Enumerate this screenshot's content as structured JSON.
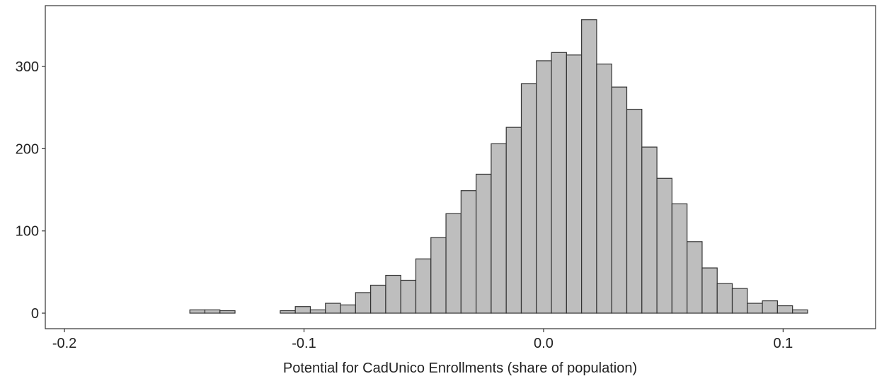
{
  "chart_data": {
    "type": "histogram",
    "x_label": "Potential for CadUnico Enrollments (share of population)",
    "bins": [
      -0.1917,
      -0.18541,
      -0.17912,
      -0.17283,
      -0.16654,
      -0.16025,
      -0.15396,
      -0.14767,
      -0.14138,
      -0.13509,
      -0.1288,
      -0.12251,
      -0.11622,
      -0.10993,
      -0.10364,
      -0.09735,
      -0.09106,
      -0.08477,
      -0.07848,
      -0.07219,
      -0.0659,
      -0.05961,
      -0.05332,
      -0.04703,
      -0.04074,
      -0.03445,
      -0.02816,
      -0.02187,
      -0.01558,
      -0.00929,
      -0.003,
      0.00329,
      0.00958,
      0.01587,
      0.02216,
      0.02845,
      0.03474,
      0.04103,
      0.04732,
      0.05361,
      0.0599,
      0.06619,
      0.07248,
      0.07877,
      0.08506,
      0.09135,
      0.09764,
      0.10393,
      0.11022,
      0.11651,
      0.1228
    ],
    "values": [
      0,
      0,
      0,
      0,
      0,
      0,
      0,
      4,
      4,
      3,
      0,
      0,
      0,
      3,
      8,
      4,
      12,
      10,
      25,
      34,
      46,
      40,
      66,
      92,
      121,
      149,
      169,
      206,
      226,
      279,
      307,
      317,
      314,
      357,
      303,
      275,
      248,
      202,
      164,
      133,
      87,
      55,
      36,
      30,
      12,
      15,
      9,
      4,
      0,
      0
    ],
    "color": "#bebebe",
    "xlim": [
      -0.208,
      0.1386
    ],
    "ylim": [
      -18.9,
      374
    ],
    "xticks": [
      -0.2,
      -0.1,
      {
        "value": 0,
        "label": "0.0"
      },
      0.1
    ],
    "yticks": [
      0,
      100,
      200,
      300
    ],
    "grid": false
  }
}
